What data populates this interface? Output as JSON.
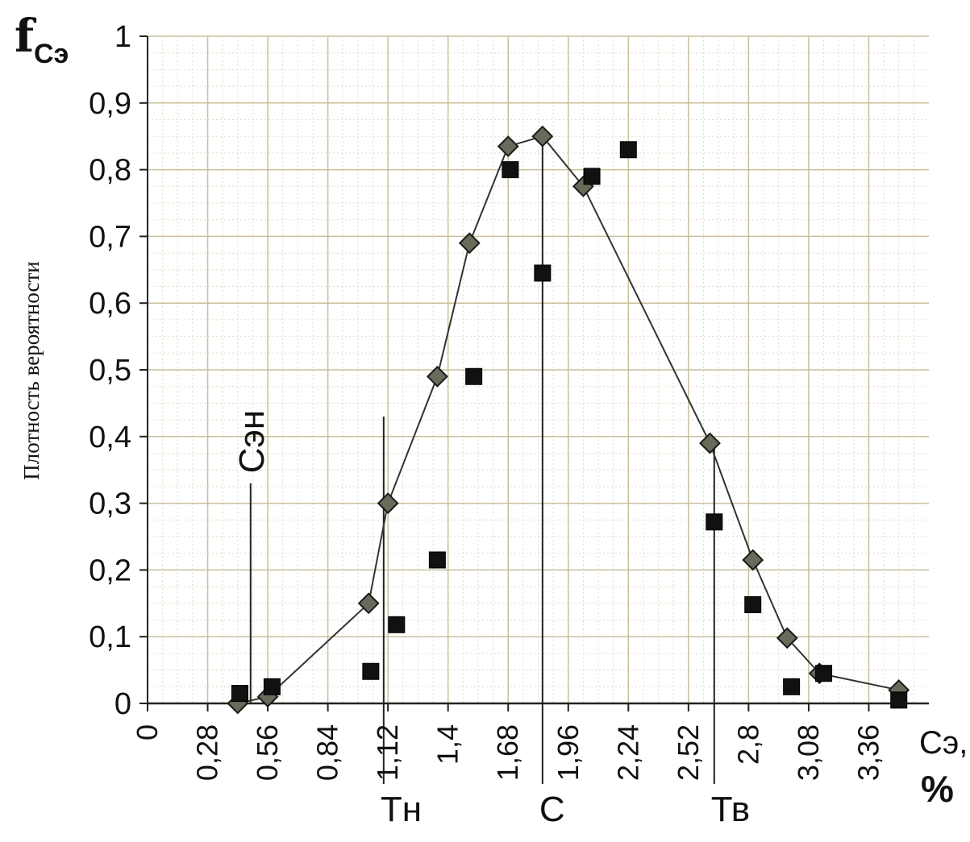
{
  "chart_data": {
    "type": "scatter",
    "y_title_main": "f",
    "y_title_sub": "Сэ",
    "ylabel": "Плотность вероятности",
    "xlabel": "Сэ,",
    "xunit": "%",
    "xlim": [
      0,
      3.64
    ],
    "ylim": [
      0,
      1
    ],
    "x_tick_values": [
      0,
      0.28,
      0.56,
      0.84,
      1.12,
      1.4,
      1.68,
      1.96,
      2.24,
      2.52,
      2.8,
      3.08,
      3.36
    ],
    "x_tick_labels": [
      "0",
      "0,28",
      "0,56",
      "0,84",
      "1,12",
      "1,4",
      "1,68",
      "1,96",
      "2,24",
      "2,52",
      "2,8",
      "3,08",
      "3,36"
    ],
    "y_tick_values": [
      0,
      0.1,
      0.2,
      0.3,
      0.4,
      0.5,
      0.6,
      0.7,
      0.8,
      0.9,
      1
    ],
    "y_tick_labels": [
      "0",
      "0,1",
      "0,2",
      "0,3",
      "0,4",
      "0,5",
      "0,6",
      "0,7",
      "0,8",
      "0,9",
      "1"
    ],
    "grid": true,
    "series": [
      {
        "marker": "diamond",
        "connected": true,
        "color": "#3a3a3a",
        "x": [
          0.42,
          0.56,
          1.03,
          1.12,
          1.35,
          1.5,
          1.68,
          1.84,
          2.03,
          2.62,
          2.82,
          2.98,
          3.13,
          3.5
        ],
        "y": [
          0.0,
          0.01,
          0.15,
          0.3,
          0.49,
          0.69,
          0.835,
          0.85,
          0.775,
          0.39,
          0.215,
          0.098,
          0.045,
          0.02
        ]
      },
      {
        "marker": "square",
        "connected": false,
        "color": "#111111",
        "x": [
          0.43,
          0.58,
          1.04,
          1.16,
          1.35,
          1.52,
          1.69,
          1.84,
          2.07,
          2.24,
          2.64,
          2.82,
          3.0,
          3.15,
          3.5
        ],
        "y": [
          0.015,
          0.025,
          0.048,
          0.118,
          0.215,
          0.49,
          0.8,
          0.645,
          0.79,
          0.83,
          0.272,
          0.148,
          0.025,
          0.045,
          0.005
        ]
      }
    ],
    "annotations": [
      {
        "label": "Сэн",
        "x": 0.48
      },
      {
        "label": "Тн",
        "x": 1.1
      },
      {
        "label": "С",
        "x": 1.84
      },
      {
        "label": "Тв",
        "x": 2.64
      }
    ]
  }
}
